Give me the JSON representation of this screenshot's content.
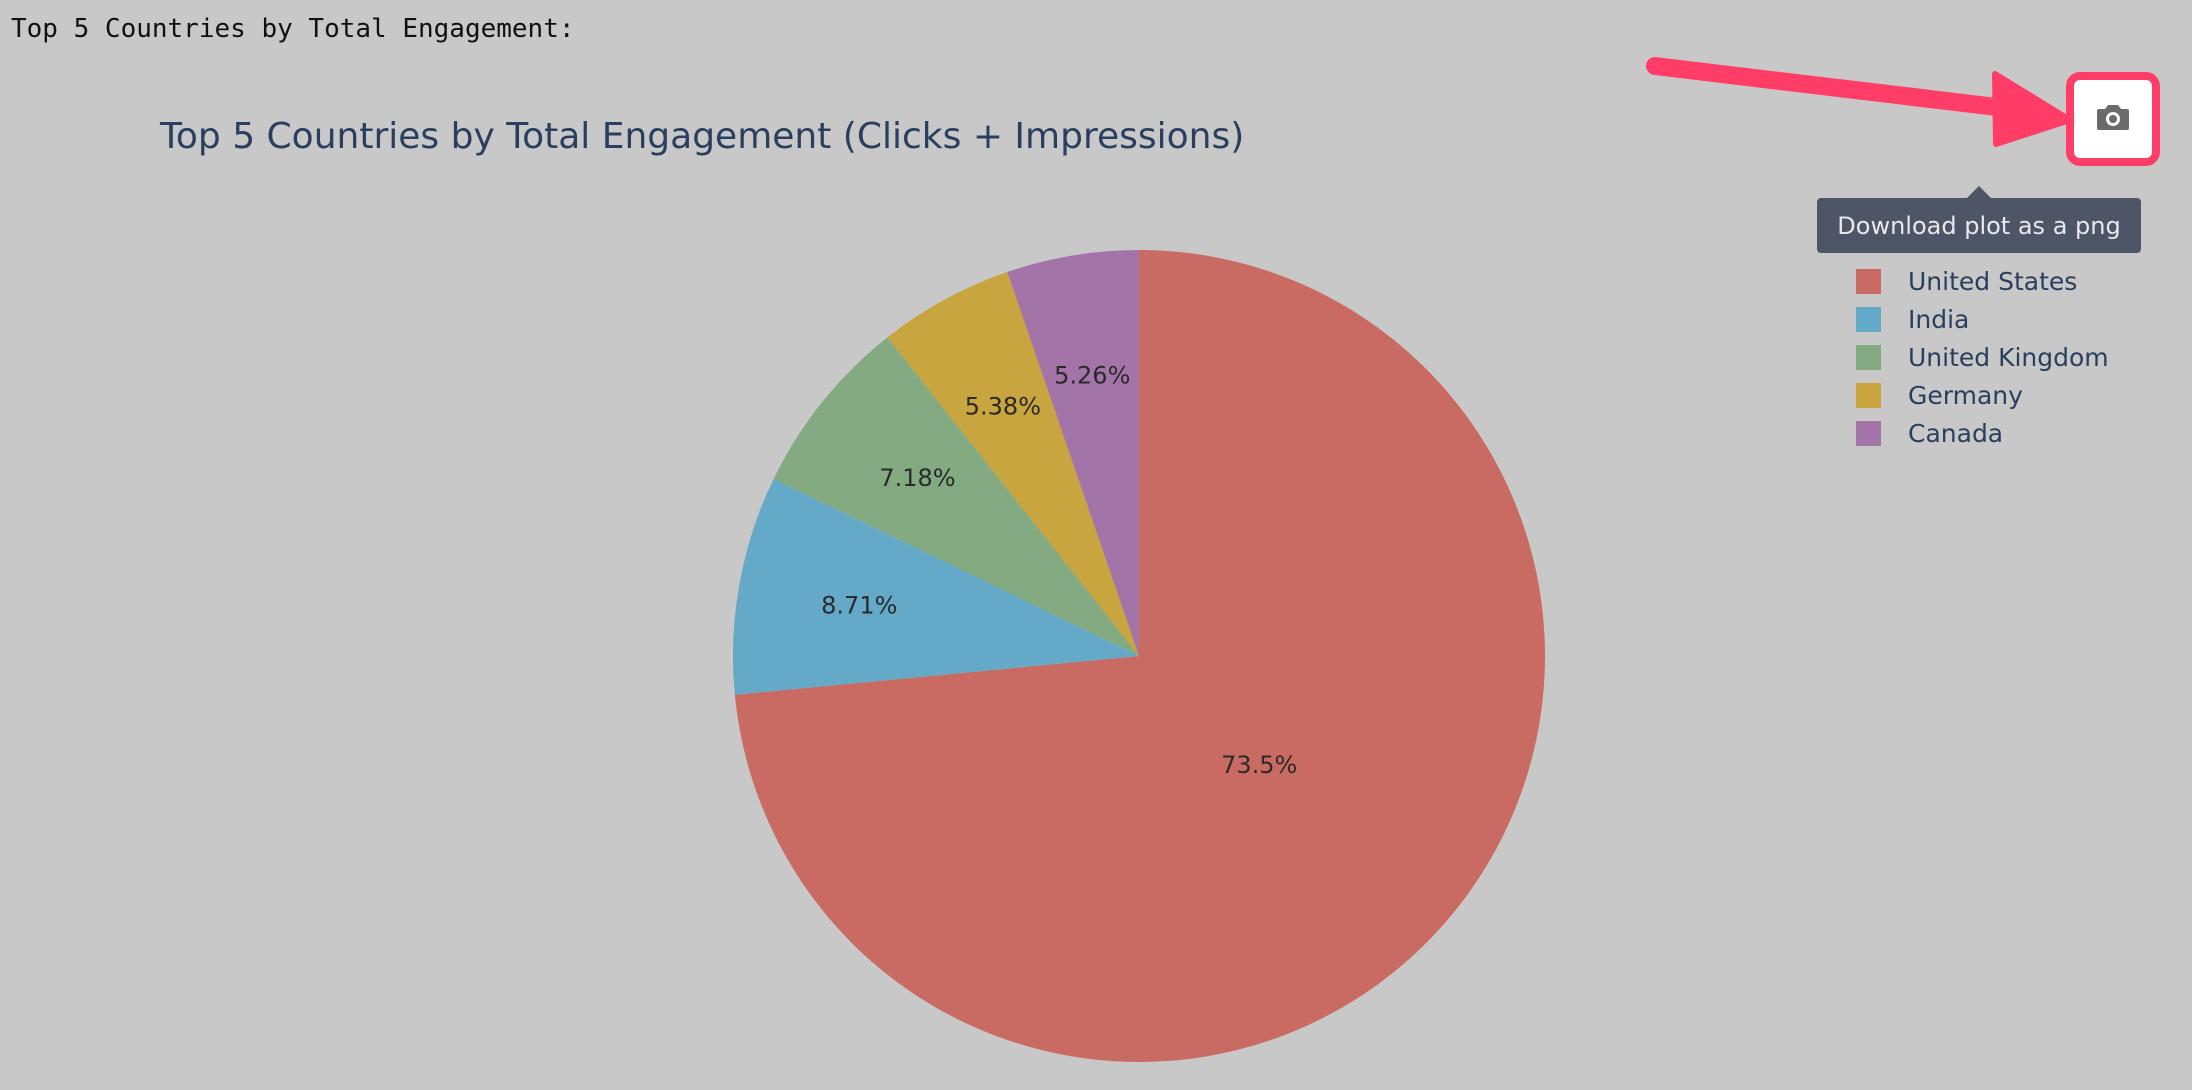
{
  "console": {
    "text": "Top 5 Countries by Total Engagement:"
  },
  "modebar": {
    "download_icon": "camera-icon",
    "tooltip": "Download plot as a png"
  },
  "annotation": {
    "arrow_color": "#ff3d66",
    "highlight_color": "#ff3d66"
  },
  "chart_data": {
    "type": "pie",
    "title": "Top 5 Countries by Total Engagement (Clicks + Impressions)",
    "start_angle_deg": 90,
    "direction": "clockwise",
    "text_info": "percent",
    "slices": [
      {
        "label": "United States",
        "percent": 73.5,
        "text": "73.5%",
        "color": "#c96b62"
      },
      {
        "label": "India",
        "percent": 8.71,
        "text": "8.71%",
        "color": "#64aac8"
      },
      {
        "label": "United Kingdom",
        "percent": 7.18,
        "text": "7.18%",
        "color": "#83aa80"
      },
      {
        "label": "Germany",
        "percent": 5.38,
        "text": "5.38%",
        "color": "#c8a53e"
      },
      {
        "label": "Canada",
        "percent": 5.26,
        "text": "5.26%",
        "color": "#a274a8"
      }
    ],
    "legend": {
      "position": "top-right",
      "items": [
        "United States",
        "India",
        "United Kingdom",
        "Germany",
        "Canada"
      ]
    }
  }
}
